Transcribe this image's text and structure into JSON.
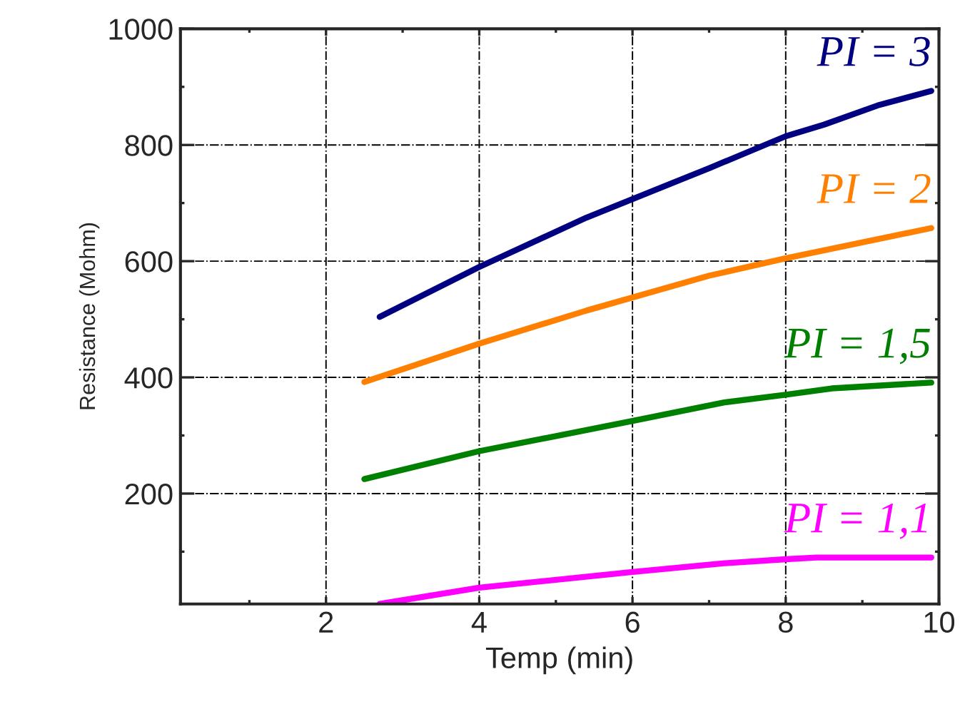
{
  "chart_data": {
    "type": "line",
    "xlabel": "Temp (min)",
    "ylabel": "Resistance (Mohm)",
    "xlim": [
      0.1,
      10
    ],
    "ylim": [
      10,
      1000
    ],
    "xticks": [
      2,
      4,
      6,
      8,
      10
    ],
    "yticks": [
      200,
      400,
      600,
      800,
      1000
    ],
    "grid": true,
    "line_style": "solid",
    "series": [
      {
        "name": "PI = 3",
        "color": "#000080",
        "x": [
          2.7,
          4,
          5.4,
          7,
          8,
          8.5,
          9.2,
          9.9
        ],
        "values": [
          504,
          590,
          675,
          760,
          815,
          835,
          868,
          893
        ]
      },
      {
        "name": "PI = 2",
        "color": "#ff8000",
        "x": [
          2.5,
          4,
          5.4,
          7,
          8,
          9.9
        ],
        "values": [
          392,
          458,
          515,
          575,
          605,
          657
        ]
      },
      {
        "name": "PI = 1,5",
        "color": "#008000",
        "x": [
          2.5,
          4,
          6,
          7.2,
          8,
          8.6,
          9.9
        ],
        "values": [
          225,
          273,
          325,
          357,
          370,
          381,
          391
        ]
      },
      {
        "name": "PI = 1,1",
        "color": "#ff00ff",
        "x": [
          2.7,
          4,
          6,
          7.2,
          8,
          8.4,
          9.9
        ],
        "values": [
          10,
          38,
          65,
          80,
          87,
          90,
          90
        ]
      }
    ]
  }
}
